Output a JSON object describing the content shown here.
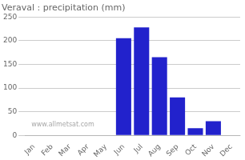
{
  "chart_data": {
    "type": "bar",
    "title": "Veraval : precipitation (mm)",
    "categories": [
      "Jan",
      "Feb",
      "Mar",
      "Apr",
      "May",
      "Jun",
      "Jul",
      "Aug",
      "Sep",
      "Oct",
      "Nov",
      "Dec"
    ],
    "values": [
      0,
      0,
      0,
      0,
      0,
      205,
      228,
      165,
      80,
      15,
      30,
      0
    ],
    "color": "#2222cc",
    "ylim": [
      0,
      250
    ],
    "yticks": [
      0,
      50,
      100,
      150,
      200,
      250
    ],
    "grid": true,
    "annotations": [
      "www.allmetsat.com"
    ]
  }
}
